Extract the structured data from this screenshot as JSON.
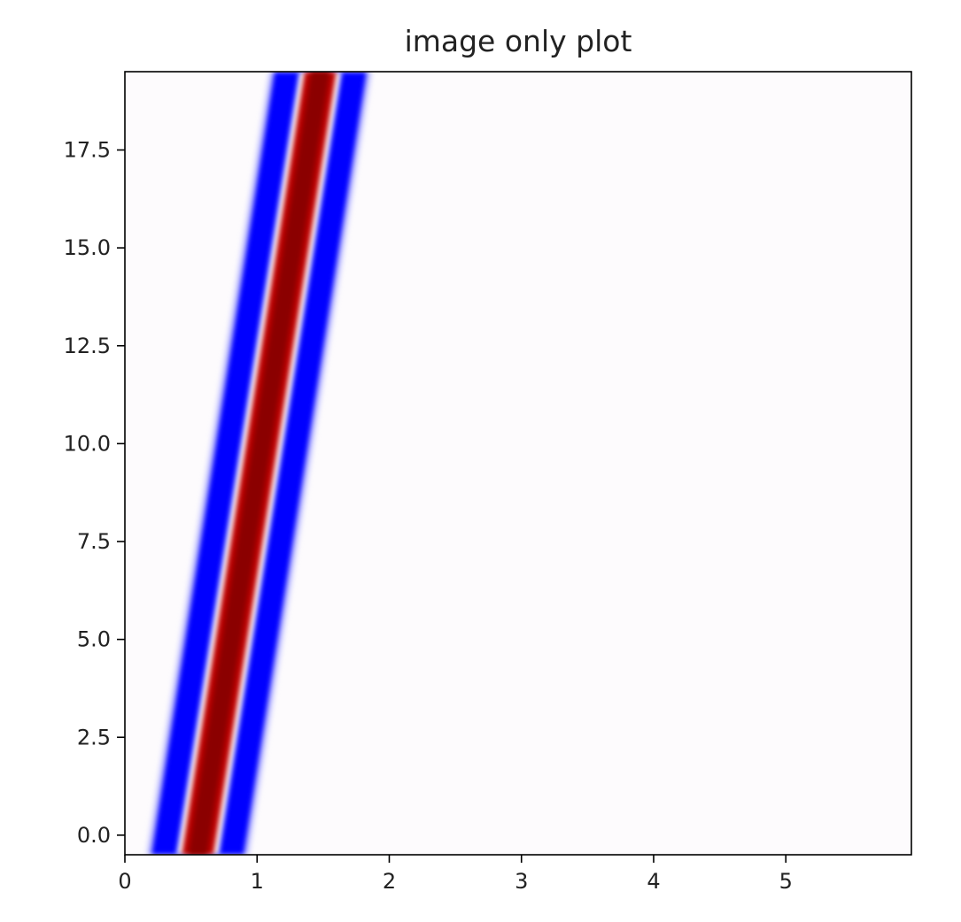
{
  "chart_data": {
    "type": "heatmap",
    "title": "image only plot",
    "xlabel": "",
    "ylabel": "",
    "xlim": [
      0,
      5.95
    ],
    "ylim": [
      -0.5,
      19.5
    ],
    "xticks": [
      {
        "value": 0,
        "label": "0"
      },
      {
        "value": 1,
        "label": "1"
      },
      {
        "value": 2,
        "label": "2"
      },
      {
        "value": 3,
        "label": "3"
      },
      {
        "value": 4,
        "label": "4"
      },
      {
        "value": 5,
        "label": "5"
      }
    ],
    "yticks": [
      {
        "value": 0.0,
        "label": "0.0"
      },
      {
        "value": 2.5,
        "label": "2.5"
      },
      {
        "value": 5.0,
        "label": "5.0"
      },
      {
        "value": 7.5,
        "label": "7.5"
      },
      {
        "value": 10.0,
        "label": "10.0"
      },
      {
        "value": 12.5,
        "label": "12.5"
      },
      {
        "value": 15.0,
        "label": "15.0"
      },
      {
        "value": 17.5,
        "label": "17.5"
      }
    ],
    "colormap": "seismic",
    "colors": {
      "negative": "#0000ff",
      "zero": "#ffffff",
      "positive": "#8b0000"
    },
    "band": {
      "center_x_at_bottom": 0.55,
      "center_x_at_top": 1.48,
      "core_half_width": 0.12,
      "white_gap_half_width": 0.16,
      "blue_half_width": 0.35
    },
    "grid": false,
    "legend": "none"
  }
}
